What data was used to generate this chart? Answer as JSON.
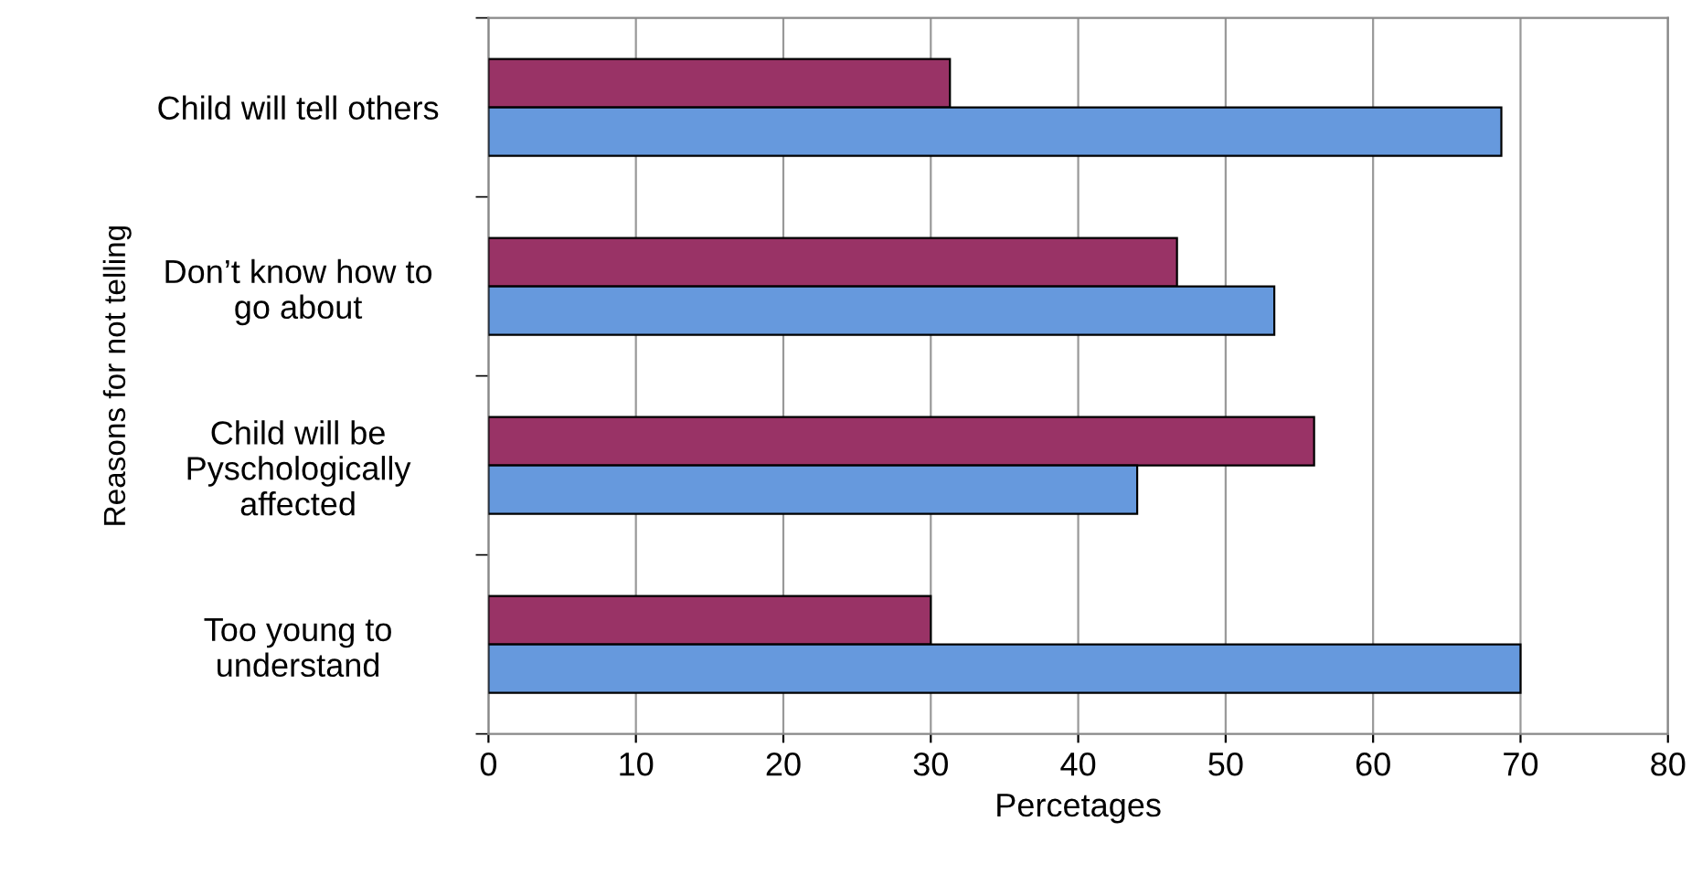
{
  "chart_data": {
    "type": "bar",
    "orientation": "horizontal",
    "xlabel": "Percetages",
    "ylabel": "Reasons for not telling",
    "categories": [
      "Child will tell others",
      "Don’t know how to\ngo about",
      "Child will be\nPyschologically\naffected",
      "Too young to\nunderstand"
    ],
    "series": [
      {
        "color": "#993366",
        "values": [
          31.3,
          46.7,
          56,
          30
        ]
      },
      {
        "color": "#6699dd",
        "values": [
          68.7,
          53.3,
          44,
          70
        ]
      }
    ],
    "xlim": [
      0,
      80
    ],
    "xticks": [
      0,
      10,
      20,
      30,
      40,
      50,
      60,
      70,
      80
    ],
    "grid": "x",
    "legend": false
  }
}
